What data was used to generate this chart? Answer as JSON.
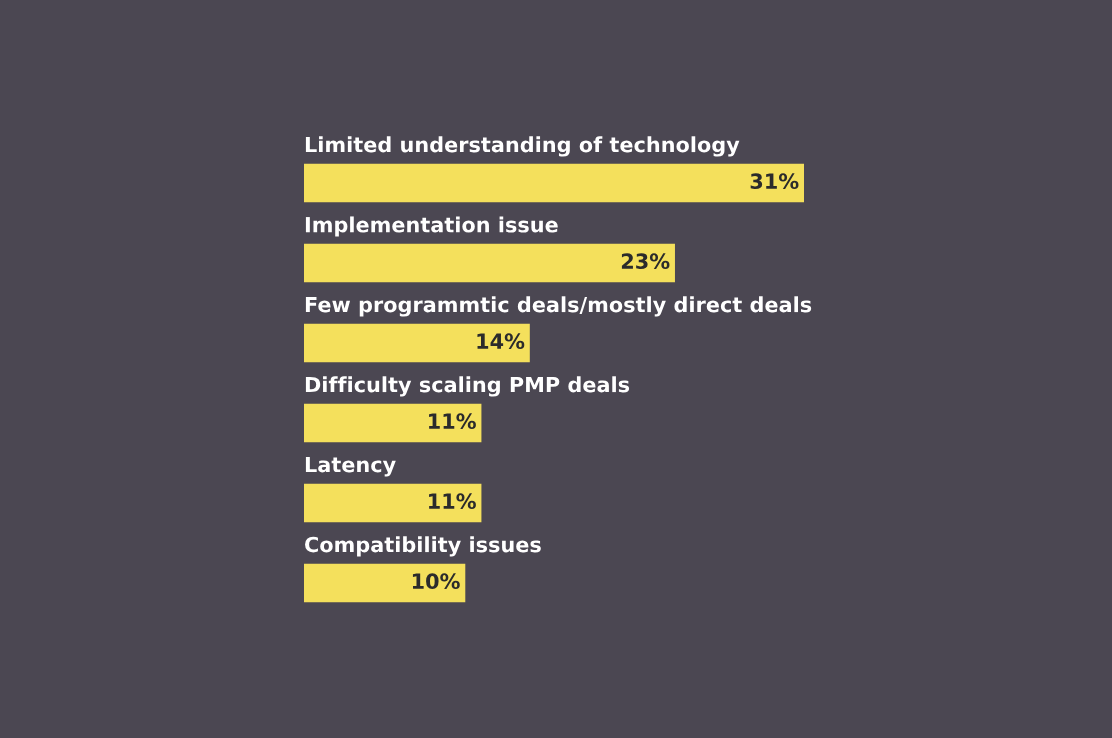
{
  "chart_data": {
    "type": "bar",
    "orientation": "horizontal",
    "categories": [
      "Limited understanding of technology",
      "Implementation issue",
      "Few programmtic deals/mostly direct deals",
      "Difficulty scaling PMP deals",
      "Latency",
      "Compatibility issues"
    ],
    "values": [
      31,
      23,
      14,
      11,
      11,
      10
    ],
    "value_labels": [
      "31%",
      "23%",
      "14%",
      "11%",
      "11%",
      "10%"
    ],
    "color": "#f4e05c"
  }
}
